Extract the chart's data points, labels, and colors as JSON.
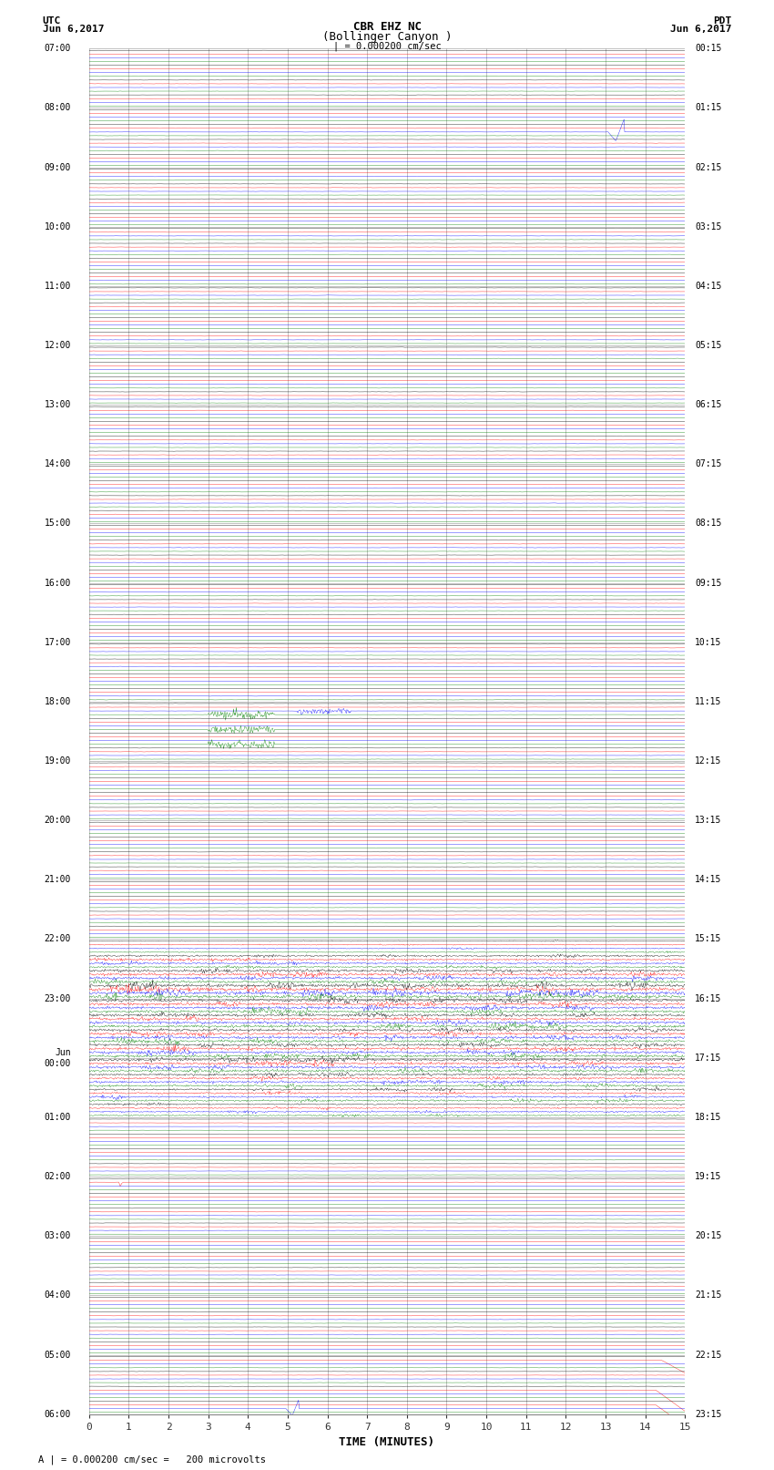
{
  "title_line1": "CBR EHZ NC",
  "title_line2": "(Bollinger Canyon )",
  "title_scale": "| = 0.000200 cm/sec",
  "label_utc": "UTC",
  "label_pdt": "PDT",
  "label_date_left": "Jun 6,2017",
  "label_date_right": "Jun 6,2017",
  "xlabel": "TIME (MINUTES)",
  "footer": "A | = 0.000200 cm/sec =   200 microvolts",
  "xlim": [
    0,
    15
  ],
  "xticks": [
    0,
    1,
    2,
    3,
    4,
    5,
    6,
    7,
    8,
    9,
    10,
    11,
    12,
    13,
    14,
    15
  ],
  "bg_color": "#ffffff",
  "grid_color": "#aaaaaa",
  "trace_colors": [
    "black",
    "red",
    "blue",
    "green"
  ],
  "utc_labels": [
    "07:00",
    "08:00",
    "09:00",
    "10:00",
    "11:00",
    "12:00",
    "13:00",
    "14:00",
    "15:00",
    "16:00",
    "17:00",
    "18:00",
    "19:00",
    "20:00",
    "21:00",
    "22:00",
    "23:00",
    "Jun\n00:00",
    "01:00",
    "02:00",
    "03:00",
    "04:00",
    "05:00",
    "06:00"
  ],
  "pdt_labels": [
    "00:15",
    "01:15",
    "02:15",
    "03:15",
    "04:15",
    "05:15",
    "06:15",
    "07:15",
    "08:15",
    "09:15",
    "10:15",
    "11:15",
    "12:15",
    "13:15",
    "14:15",
    "15:15",
    "16:15",
    "17:15",
    "18:15",
    "19:15",
    "20:15",
    "21:15",
    "22:15",
    "23:15"
  ]
}
